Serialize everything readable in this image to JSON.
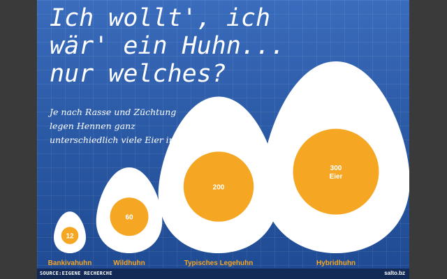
{
  "header": {
    "title": "Ich wollt', ich\nwär' ein Huhn...\nnur welches?",
    "subtitle": "Je nach Rasse und Züchtung legen Hennen ganz unterschiedlich viele Eier im Jahr."
  },
  "footer": {
    "source": "SOURCE:EIGENE RECHERCHE",
    "logo": "salto.bz"
  },
  "colors": {
    "background": "#2a58a4",
    "egg": "#ffffff",
    "yolk": "#f5a623",
    "footer": "#122a55"
  },
  "chart_data": {
    "type": "proportional-area",
    "unit": "Eier",
    "categories": [
      "Bankivahuhn",
      "Wildhuhn",
      "Typisches Legehuhn",
      "Hybridhuhn"
    ],
    "values": [
      12,
      60,
      200,
      300
    ],
    "value_labels": [
      "12",
      "60",
      "200",
      "300\nEier"
    ]
  }
}
